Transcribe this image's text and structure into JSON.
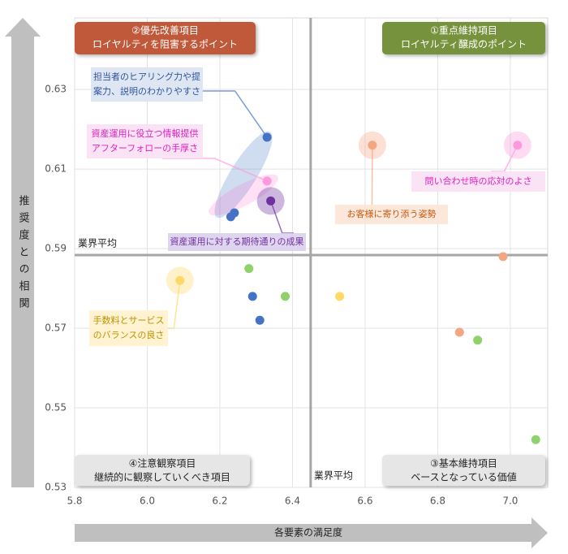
{
  "chart_data": {
    "type": "scatter",
    "x_label": "各要素の満足度",
    "y_label": "推奨度との相関",
    "xlim": [
      5.8,
      7.103
    ],
    "ylim": [
      0.53,
      0.648
    ],
    "xticks": [
      5.8,
      {
        "value": 6,
        "label": "6.0"
      },
      6.2,
      6.4,
      6.6,
      6.8,
      {
        "value": 7,
        "label": "7.0"
      }
    ],
    "yticks": [
      0.53,
      0.55,
      0.57,
      0.59,
      0.61,
      0.63
    ],
    "avg_label": "業界平均",
    "x_avg": 6.45,
    "y_avg": 0.5884,
    "series": [
      {
        "color": "#4472c4",
        "x": [
          6.33,
          6.23,
          6.24,
          6.29,
          6.31
        ],
        "y": [
          0.618,
          0.598,
          0.599,
          0.578,
          0.572
        ]
      },
      {
        "color": "#7030a0",
        "x": [
          6.34
        ],
        "y": [
          0.602
        ]
      },
      {
        "color": "#ff99dd",
        "x": [
          7.02,
          6.33
        ],
        "y": [
          0.616,
          0.607
        ]
      },
      {
        "color": "#f4a582",
        "x": [
          6.62,
          6.98,
          6.86
        ],
        "y": [
          0.616,
          0.588,
          0.569
        ]
      },
      {
        "color": "#8fd16a",
        "x": [
          6.28,
          6.38,
          6.91,
          7.07
        ],
        "y": [
          0.585,
          0.578,
          0.567,
          0.542
        ]
      },
      {
        "color": "#ffd966",
        "x": [
          6.09,
          6.53
        ],
        "y": [
          0.582,
          0.578
        ]
      }
    ],
    "quadrants": [
      {
        "lines": [
          "②優先改善項目",
          "ロイヤルティを阻害するポイント"
        ]
      },
      {
        "lines": [
          "①重点維持項目",
          "ロイヤルティ醸成のポイント"
        ]
      },
      {
        "lines": [
          "④注意観察項目",
          "継続的に観察していくべき項目"
        ]
      },
      {
        "lines": [
          "③基本維持項目",
          "ベースとなっている価値"
        ]
      }
    ],
    "annotations": [
      {
        "lines": [
          "担当者のヒアリング力や提",
          "案力、説明のわかりやすさ"
        ]
      },
      {
        "lines": [
          "資産運用に役立つ情報提供",
          "アフターフォローの手厚さ"
        ]
      },
      {
        "lines": [
          "資産運用に対する期待通りの成果"
        ]
      },
      {
        "lines": [
          "お客様に寄り添う姿勢"
        ]
      },
      {
        "lines": [
          "問い合わせ時の応対のよさ"
        ]
      },
      {
        "lines": [
          "手数料とサービス",
          "のバランスの良さ"
        ]
      }
    ]
  }
}
